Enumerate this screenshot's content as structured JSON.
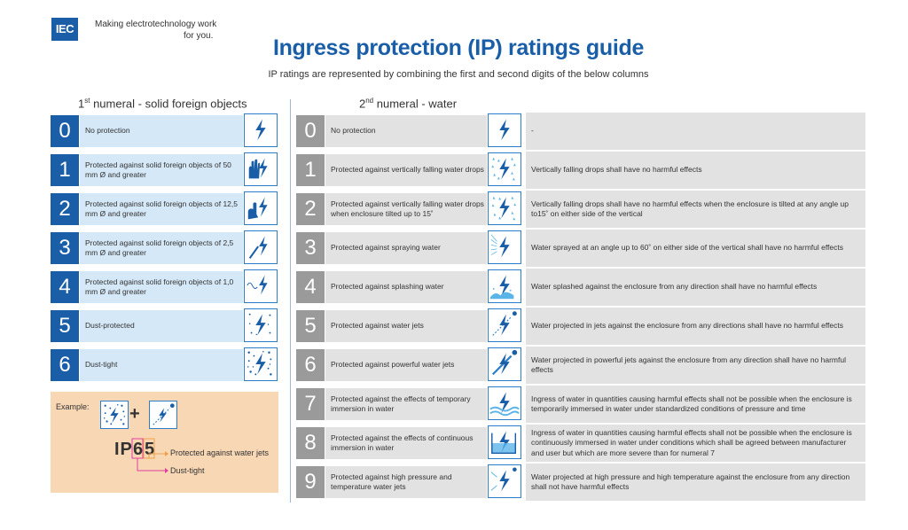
{
  "header": {
    "logo_text": "IEC",
    "tagline_line1": "Making  electrotechnology work",
    "tagline_line2": "for you.",
    "title": "Ingress protection (IP) ratings guide",
    "subtitle": "IP ratings are represented by combining the first and second digits of the below columns"
  },
  "col1": {
    "heading_num": "1",
    "heading_sup": "st",
    "heading_rest": " numeral - solid foreign objects",
    "rows": [
      {
        "numeral": "0",
        "desc": "No protection",
        "icon": "bolt-icon"
      },
      {
        "numeral": "1",
        "desc": "Protected against solid foreign objects of 50 mm Ø and greater",
        "icon": "hand-bolt-icon"
      },
      {
        "numeral": "2",
        "desc": "Protected against solid foreign objects of 12,5 mm Ø and greater",
        "icon": "finger-bolt-icon"
      },
      {
        "numeral": "3",
        "desc": "Protected against solid foreign objects of 2,5 mm Ø and greater",
        "icon": "tool-bolt-icon"
      },
      {
        "numeral": "4",
        "desc": "Protected against solid foreign objects of 1,0 mm Ø and greater",
        "icon": "wire-bolt-icon"
      },
      {
        "numeral": "5",
        "desc": "Dust-protected",
        "icon": "dust-bolt-icon"
      },
      {
        "numeral": "6",
        "desc": "Dust-tight",
        "icon": "dense-dust-bolt-icon"
      }
    ]
  },
  "col2": {
    "heading_num": "2",
    "heading_sup": "nd",
    "heading_rest": " numeral - water",
    "rows": [
      {
        "numeral": "0",
        "desc": "No protection",
        "detail": "-",
        "icon": "bolt-icon"
      },
      {
        "numeral": "1",
        "desc": "Protected against vertically falling water drops",
        "detail": "Vertically falling drops shall have no harmful effects",
        "icon": "drops-bolt-icon"
      },
      {
        "numeral": "2",
        "desc": "Protected against vertically falling water drops when enclosure tilted up to 15˚",
        "detail": "Vertically falling drops shall have no harmful effects when the enclosure is tilted at any angle up to15˚ on either side of the vertical",
        "icon": "tilted-drops-bolt-icon"
      },
      {
        "numeral": "3",
        "desc": "Protected against spraying water",
        "detail": "Water sprayed at an angle up to 60˚ on either side of the vertical shall have no harmful effects",
        "icon": "spray-bolt-icon"
      },
      {
        "numeral": "4",
        "desc": "Protected against splashing water",
        "detail": "Water splashed against the enclosure from any direction shall have no harmful effects",
        "icon": "splash-bolt-icon"
      },
      {
        "numeral": "5",
        "desc": "Protected against water jets",
        "detail": "Water projected in jets against the enclosure from any directions shall have no harmful effects",
        "icon": "jet-bolt-icon"
      },
      {
        "numeral": "6",
        "desc": "Protected against powerful water jets",
        "detail": "Water projected in powerful jets against the enclosure from any direction shall have no harmful effects",
        "icon": "powerful-jet-bolt-icon"
      },
      {
        "numeral": "7",
        "desc": "Protected against the effects of temporary immersion in water",
        "detail": "Ingress of water in quantities causing harmful effects shall not be possible when the enclosure is temporarily immersed in water under standardized conditions of pressure and time",
        "icon": "wave-bolt-icon"
      },
      {
        "numeral": "8",
        "desc": "Protected against the effects of continuous immersion in water",
        "detail": "Ingress of water in quantities causing harmful effects shall not be possible when the enclosure is continuously immersed in water under conditions which shall be agreed between manufacturer and user but which are more severe than for numeral 7",
        "icon": "immersion-bolt-icon"
      },
      {
        "numeral": "9",
        "desc": "Protected against high pressure and temperature water jets",
        "detail": "Water projected at high pressure and high temperature against the enclosure from any direction shall not have harmful effects",
        "icon": "high-pressure-bolt-icon"
      }
    ]
  },
  "example": {
    "label": "Example:",
    "plus": "+",
    "code_prefix": "IP",
    "digit1": "6",
    "digit2": "5",
    "jets_label": "Protected against water jets",
    "dust_label": "Dust-tight"
  },
  "colors": {
    "brand_blue": "#1a5ea8",
    "light_blue": "#d5e8f7",
    "gray_numeral": "#9a9a9a",
    "gray_row": "#e2e2e2",
    "example_bg": "#f8d7b4",
    "arrow_orange": "#f0a04a",
    "arrow_pink": "#e040a0"
  }
}
